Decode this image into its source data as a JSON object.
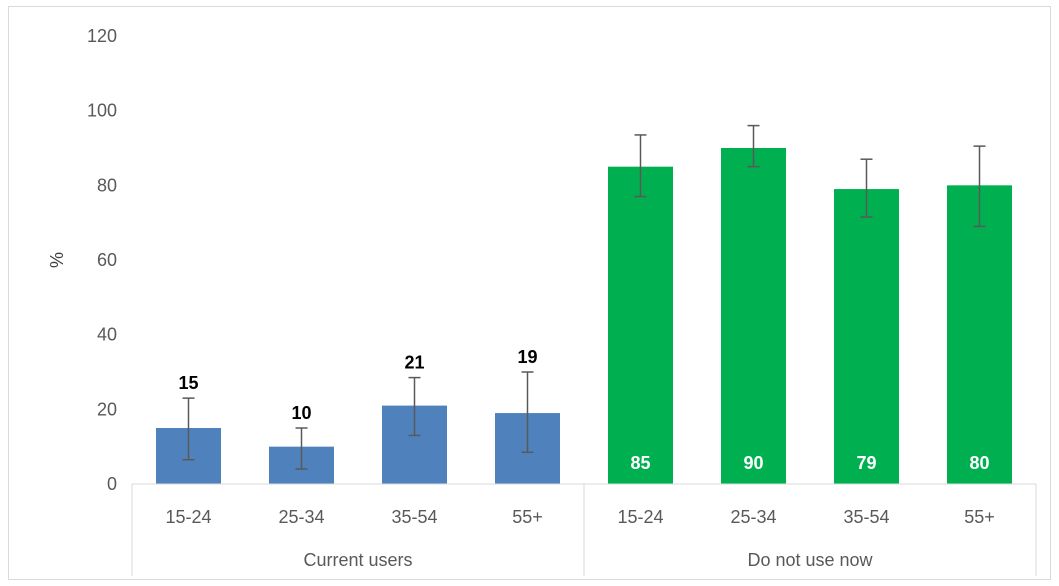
{
  "chart_data": {
    "type": "bar",
    "ylabel": "%",
    "ylim": [
      0,
      120
    ],
    "yticks": [
      0,
      20,
      40,
      60,
      80,
      100,
      120
    ],
    "groups": [
      {
        "name": "Current users",
        "color": "#4f81bd",
        "label_style": "above",
        "categories": [
          "15-24",
          "25-34",
          "35-54",
          "55+"
        ],
        "values": [
          15,
          10,
          21,
          19
        ],
        "labels": [
          "15",
          "10",
          "21",
          "19"
        ],
        "error_low": [
          6.5,
          4,
          13,
          8.5
        ],
        "error_high": [
          23,
          15,
          28.5,
          30
        ]
      },
      {
        "name": "Do not use now",
        "color": "#00b050",
        "label_style": "inside",
        "categories": [
          "15-24",
          "25-34",
          "35-54",
          "55+"
        ],
        "values": [
          85,
          90,
          79,
          80
        ],
        "labels": [
          "85",
          "90",
          "79",
          "80"
        ],
        "error_low": [
          77,
          85,
          71.5,
          69
        ],
        "error_high": [
          93.5,
          96,
          87,
          90.5
        ]
      }
    ],
    "grid": false,
    "legend": "none"
  }
}
